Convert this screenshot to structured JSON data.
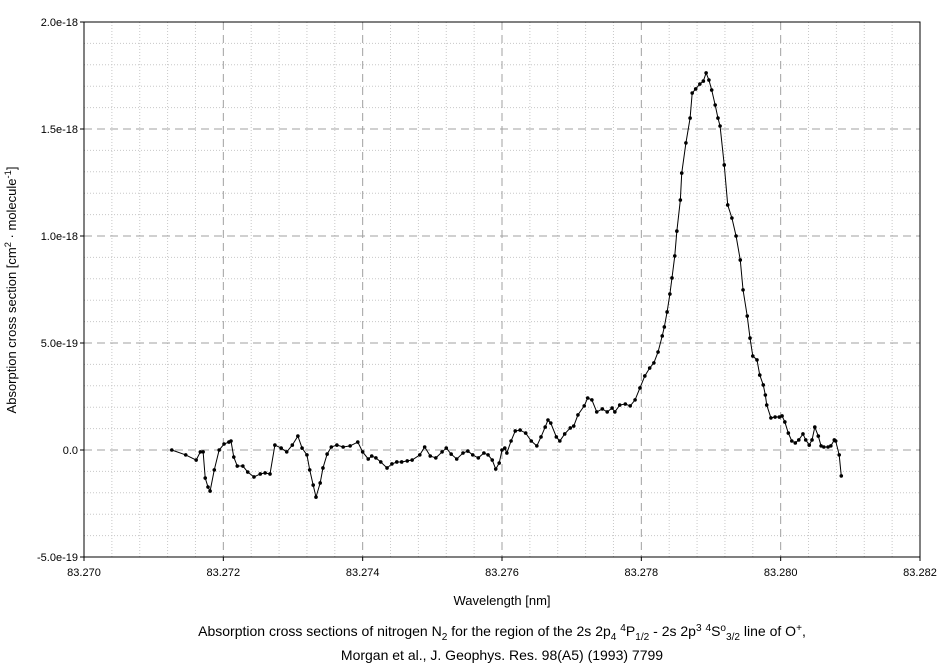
{
  "chart_data": {
    "type": "line",
    "x_label": "Wavelength [nm]",
    "y_label": [
      {
        "text": "Absorption cross section [cm"
      },
      {
        "sup": "2"
      },
      {
        "text": " · molecule"
      },
      {
        "sup": "-1"
      },
      {
        "text": "]"
      }
    ],
    "caption": [
      [
        {
          "text": "Absorption cross sections of nitrogen N"
        },
        {
          "sub": "2"
        },
        {
          "text": " for the region of the 2s 2p"
        },
        {
          "sub": "4"
        },
        {
          "text": " "
        },
        {
          "sup": "4"
        },
        {
          "text": "P"
        },
        {
          "sub": "1/2"
        },
        {
          "text": " - 2s 2p"
        },
        {
          "sup": "3"
        },
        {
          "text": " "
        },
        {
          "sup": "4"
        },
        {
          "text": "S"
        },
        {
          "sup": "o"
        },
        {
          "sub": "3/2"
        },
        {
          "text": " line of O"
        },
        {
          "sup": "+"
        },
        {
          "text": ","
        }
      ],
      [
        {
          "text": "Morgan et al., J. Geophys. Res. 98(A5) (1993) 7799"
        }
      ]
    ],
    "xlim": [
      83.27,
      83.282
    ],
    "xticks": [
      {
        "value": 83.27,
        "label": "83.270"
      },
      83.272,
      83.274,
      83.276,
      83.278,
      {
        "value": 83.28,
        "label": "83.280"
      },
      83.282
    ],
    "ylim": [
      -5e-19,
      2e-18
    ],
    "yticks": [
      {
        "value": -5e-19,
        "label": "-5.0e-19"
      },
      {
        "value": 0,
        "label": "0.0"
      },
      {
        "value": 5e-19,
        "label": "5.0e-19"
      },
      {
        "value": 1e-18,
        "label": "1.0e-18"
      },
      {
        "value": 1.5e-18,
        "label": "1.5e-18"
      },
      {
        "value": 2e-18,
        "label": "2.0e-18"
      }
    ],
    "grid": true,
    "minor_divisions": 5,
    "color": "#000000",
    "markers": true,
    "x": [
      83.27126,
      83.27146,
      83.27161,
      83.27167,
      83.27171,
      83.27174,
      83.27178,
      83.27181,
      83.27187,
      83.27194,
      83.27201,
      83.27208,
      83.27211,
      83.27215,
      83.2722,
      83.27228,
      83.27235,
      83.27244,
      83.27253,
      83.2726,
      83.27267,
      83.27274,
      83.27283,
      83.27291,
      83.27299,
      83.27307,
      83.27313,
      83.2732,
      83.27324,
      83.27329,
      83.27333,
      83.27339,
      83.27343,
      83.27349,
      83.27355,
      83.27363,
      83.27372,
      83.27382,
      83.27393,
      83.274,
      83.27408,
      83.27413,
      83.27419,
      83.27426,
      83.27435,
      83.27442,
      83.27449,
      83.27456,
      83.27464,
      83.27471,
      83.27482,
      83.27489,
      83.27497,
      83.27505,
      83.27514,
      83.2752,
      83.27527,
      83.27535,
      83.27544,
      83.27551,
      83.27558,
      83.27566,
      83.27574,
      83.2758,
      83.27586,
      83.27591,
      83.27596,
      83.276,
      83.27604,
      83.27607,
      83.27613,
      83.27619,
      83.27626,
      83.27634,
      83.27642,
      83.2765,
      83.27656,
      83.27662,
      83.27666,
      83.2767,
      83.27678,
      83.27683,
      83.2769,
      83.27698,
      83.27703,
      83.27709,
      83.27718,
      83.27723,
      83.27729,
      83.27736,
      83.27744,
      83.27751,
      83.27758,
      83.27762,
      83.27769,
      83.27777,
      83.27784,
      83.27791,
      83.27798,
      83.27805,
      83.27812,
      83.27818,
      83.27824,
      83.2783,
      83.27833,
      83.27837,
      83.27841,
      83.27844,
      83.27848,
      83.27851,
      83.27856,
      83.27858,
      83.27864,
      83.2787,
      83.27873,
      83.27878,
      83.27884,
      83.27889,
      83.27893,
      83.27897,
      83.27901,
      83.27906,
      83.2791,
      83.27913,
      83.27919,
      83.27924,
      83.2793,
      83.27936,
      83.27942,
      83.27946,
      83.27952,
      83.27956,
      83.2796,
      83.27966,
      83.2797,
      83.27975,
      83.27978,
      83.2798,
      83.27986,
      83.27992,
      83.27998,
      83.28002,
      83.28006,
      83.28011,
      83.28016,
      83.28021,
      83.28026,
      83.28032,
      83.28036,
      83.28041,
      83.28045,
      83.28049,
      83.28054,
      83.28058,
      83.28062,
      83.28068,
      83.28072,
      83.28077,
      83.28079,
      83.28084,
      83.28087
    ],
    "values": [
      0,
      -2.3e-20,
      -4.7e-20,
      -9e-21,
      -9e-21,
      -1.31e-19,
      -1.73e-19,
      -1.92e-19,
      -9.3e-20,
      0,
      2.8e-20,
      3.7e-20,
      4.2e-20,
      -3.3e-20,
      -7.5e-20,
      -7.5e-20,
      -1.03e-19,
      -1.26e-19,
      -1.12e-19,
      -1.07e-19,
      -1.12e-19,
      2.3e-20,
      9e-21,
      -9e-21,
      2.3e-20,
      6.5e-20,
      9e-21,
      -2.3e-20,
      -9.3e-20,
      -1.64e-19,
      -2.2e-19,
      -1.54e-19,
      -8.4e-20,
      -1.9e-20,
      1.4e-20,
      2.3e-20,
      1.4e-20,
      1.9e-20,
      3.7e-20,
      -9e-21,
      -4.2e-20,
      -2.8e-20,
      -3.7e-20,
      -5.6e-20,
      -8.4e-20,
      -6.5e-20,
      -5.6e-20,
      -5.6e-20,
      -5.1e-20,
      -4.7e-20,
      -2.3e-20,
      1.4e-20,
      -2.8e-20,
      -3.7e-20,
      -9e-21,
      9e-21,
      -1.9e-20,
      -4.2e-20,
      -1.4e-20,
      -5e-21,
      -2.3e-20,
      -3.7e-20,
      -1.4e-20,
      -2.3e-20,
      -4.7e-20,
      -8.9e-20,
      -6.1e-20,
      0,
      9e-21,
      -1.4e-20,
      4.2e-20,
      8.9e-20,
      9.3e-20,
      7.9e-20,
      4.2e-20,
      1.9e-20,
      6.1e-20,
      1.07e-19,
      1.4e-19,
      1.26e-19,
      6.1e-20,
      4.2e-20,
      7.5e-20,
      1.03e-19,
      1.12e-19,
      1.64e-19,
      2.06e-19,
      2.43e-19,
      2.34e-19,
      1.78e-19,
      1.92e-19,
      1.78e-19,
      1.96e-19,
      1.78e-19,
      2.1e-19,
      2.15e-19,
      2.06e-19,
      2.34e-19,
      2.9e-19,
      3.46e-19,
      3.83e-19,
      4.07e-19,
      4.58e-19,
      5.33e-19,
      5.75e-19,
      6.45e-19,
      7.29e-19,
      8.04e-19,
      9.07e-19,
      1.023e-18,
      1.168e-18,
      1.294e-18,
      1.435e-18,
      1.551e-18,
      1.668e-18,
      1.687e-18,
      1.71e-18,
      1.724e-18,
      1.762e-18,
      1.729e-18,
      1.682e-18,
      1.612e-18,
      1.551e-18,
      1.514e-18,
      1.332e-18,
      1.145e-18,
      1.084e-18,
      1e-18,
      8.88e-19,
      7.48e-19,
      6.26e-19,
      5.23e-19,
      4.39e-19,
      4.21e-19,
      3.5e-19,
      3.04e-19,
      2.57e-19,
      2.1e-19,
      1.5e-19,
      1.54e-19,
      1.54e-19,
      1.59e-19,
      1.31e-19,
      7.9e-20,
      4.2e-20,
      3.3e-20,
      4.7e-20,
      7.5e-20,
      4.7e-20,
      2.3e-20,
      4.7e-20,
      1.07e-19,
      6.5e-20,
      1.9e-20,
      1.4e-20,
      1.4e-20,
      1.9e-20,
      4.7e-20,
      4.2e-20,
      -2.3e-20,
      -1.21e-19
    ]
  }
}
